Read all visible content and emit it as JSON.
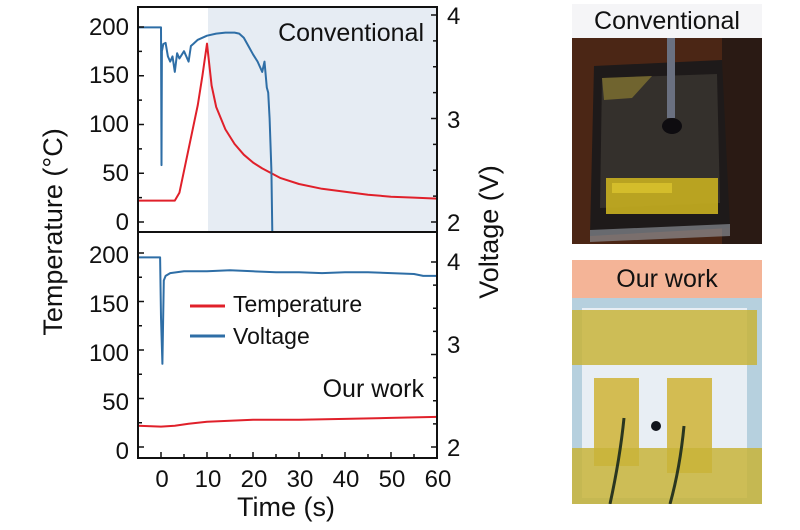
{
  "figure": {
    "left_axis_label": "Temperature (°C)",
    "right_axis_label": "Voltage (V)",
    "x_axis_label": "Time (s)",
    "x_ticks": [
      "0",
      "10",
      "20",
      "30",
      "40",
      "50",
      "60"
    ],
    "left_ticks": [
      "0",
      "50",
      "100",
      "150",
      "200"
    ],
    "right_ticks": [
      "2",
      "3",
      "4"
    ],
    "legend": [
      {
        "label": "Temperature",
        "color": "#e0202a"
      },
      {
        "label": "Voltage",
        "color": "#2e6ea6"
      }
    ],
    "top_panel_label": "Conventional",
    "bottom_panel_label": "Our work",
    "shaded_region_color": "#e6ecf3"
  },
  "photos": {
    "conventional_label": "Conventional",
    "ours_label": "Our work"
  },
  "chart_data": [
    {
      "type": "line",
      "title": "Conventional",
      "xlabel": "Time (s)",
      "ylabel": "Temperature (°C)",
      "y2label": "Voltage (V)",
      "xlim": [
        -5,
        60
      ],
      "ylim": [
        -10,
        220
      ],
      "y2lim": [
        1.85,
        4.1
      ],
      "shaded_region": {
        "x": [
          10,
          60
        ]
      },
      "series": [
        {
          "name": "Temperature",
          "axis": "left",
          "color": "#e0202a",
          "x": [
            -5,
            3,
            4,
            6,
            8,
            9,
            10,
            11,
            12,
            14,
            16,
            18,
            20,
            22,
            24,
            26,
            30,
            35,
            40,
            45,
            50,
            55,
            60
          ],
          "y": [
            22,
            22,
            30,
            75,
            120,
            150,
            183,
            140,
            118,
            95,
            80,
            69,
            61,
            55,
            50,
            45,
            39,
            34,
            31,
            28,
            26,
            25,
            24
          ]
        },
        {
          "name": "Voltage",
          "axis": "right",
          "color": "#2e6ea6",
          "x": [
            -5,
            0,
            0.1,
            0.2,
            0.5,
            1,
            1.5,
            2,
            2.5,
            3,
            3.5,
            4,
            5,
            6,
            6.5,
            7,
            8,
            10,
            12,
            14,
            16,
            17,
            18,
            19,
            20,
            21,
            22,
            22.5,
            23,
            23.3,
            23.6,
            24,
            24.2
          ],
          "y": [
            3.88,
            3.88,
            2.55,
            3.65,
            3.72,
            3.73,
            3.6,
            3.55,
            3.6,
            3.45,
            3.63,
            3.58,
            3.65,
            3.55,
            3.7,
            3.72,
            3.76,
            3.8,
            3.82,
            3.83,
            3.83,
            3.82,
            3.78,
            3.7,
            3.62,
            3.55,
            3.45,
            3.55,
            3.3,
            3.25,
            3.0,
            2.5,
            1.9
          ]
        }
      ]
    },
    {
      "type": "line",
      "title": "Our work",
      "xlabel": "Time (s)",
      "ylabel": "Temperature (°C)",
      "y2label": "Voltage (V)",
      "xlim": [
        -5,
        60
      ],
      "ylim": [
        -10,
        220
      ],
      "y2lim": [
        1.95,
        4.2
      ],
      "series": [
        {
          "name": "Temperature",
          "axis": "left",
          "color": "#e0202a",
          "x": [
            -5,
            0,
            3,
            6,
            10,
            15,
            20,
            30,
            40,
            50,
            60
          ],
          "y": [
            22,
            21,
            22,
            24,
            26,
            27,
            28,
            28,
            29,
            30,
            31
          ]
        },
        {
          "name": "Voltage",
          "axis": "right",
          "color": "#2e6ea6",
          "x": [
            -5,
            -0.2,
            0,
            0.3,
            0.6,
            1,
            2,
            5,
            10,
            15,
            20,
            25,
            30,
            35,
            40,
            45,
            50,
            55,
            57,
            60
          ],
          "y": [
            4.05,
            4.05,
            3.4,
            2.9,
            3.8,
            3.85,
            3.88,
            3.9,
            3.9,
            3.91,
            3.9,
            3.89,
            3.89,
            3.88,
            3.89,
            3.89,
            3.88,
            3.87,
            3.85,
            3.85
          ]
        }
      ]
    }
  ]
}
